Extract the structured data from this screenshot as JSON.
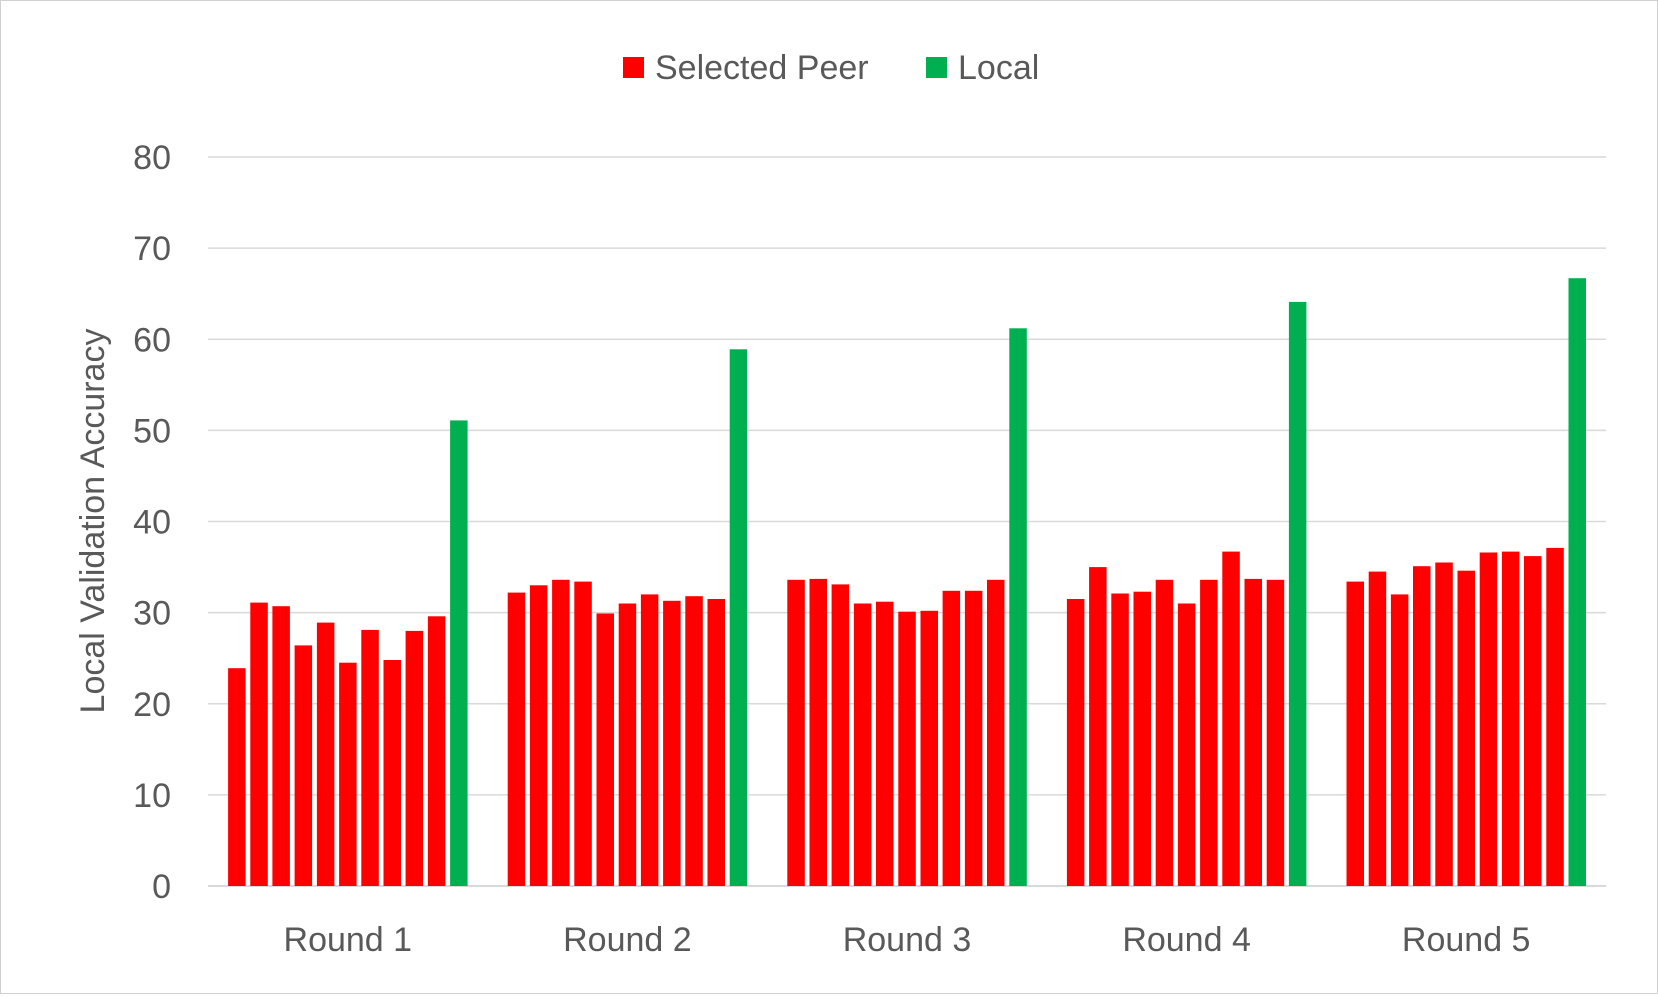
{
  "chart_data": {
    "type": "bar",
    "title": "",
    "xlabel": "",
    "ylabel": "Local Validation Accuracy",
    "ylim": [
      0,
      80
    ],
    "yticks": [
      0,
      10,
      20,
      30,
      40,
      50,
      60,
      70,
      80
    ],
    "grid": true,
    "legend": {
      "position": "top-center",
      "entries": [
        "Selected Peer",
        "Local"
      ]
    },
    "colors": {
      "Selected Peer": "#ff0000",
      "Local": "#00b050",
      "grid": "#d9d9d9",
      "axis_text": "#595959"
    },
    "groups": [
      {
        "label": "Round 1",
        "selected_peer": [
          23.9,
          31.1,
          30.7,
          26.4,
          28.9,
          24.5,
          28.1,
          24.8,
          28.0,
          29.6
        ],
        "local": 51.1
      },
      {
        "label": "Round 2",
        "selected_peer": [
          32.2,
          33.0,
          33.6,
          33.4,
          29.9,
          31.0,
          32.0,
          31.3,
          31.8,
          31.5
        ],
        "local": 58.9
      },
      {
        "label": "Round 3",
        "selected_peer": [
          33.6,
          33.7,
          33.1,
          31.0,
          31.2,
          30.1,
          30.2,
          32.4,
          32.4,
          33.6
        ],
        "local": 61.2
      },
      {
        "label": "Round 4",
        "selected_peer": [
          31.5,
          35.0,
          32.1,
          32.3,
          33.6,
          31.0,
          33.6,
          36.7,
          33.7,
          33.6
        ],
        "local": 64.1
      },
      {
        "label": "Round 5",
        "selected_peer": [
          33.4,
          34.5,
          32.0,
          35.1,
          35.5,
          34.6,
          36.6,
          36.7,
          36.2,
          37.1
        ],
        "local": 66.7
      }
    ]
  }
}
